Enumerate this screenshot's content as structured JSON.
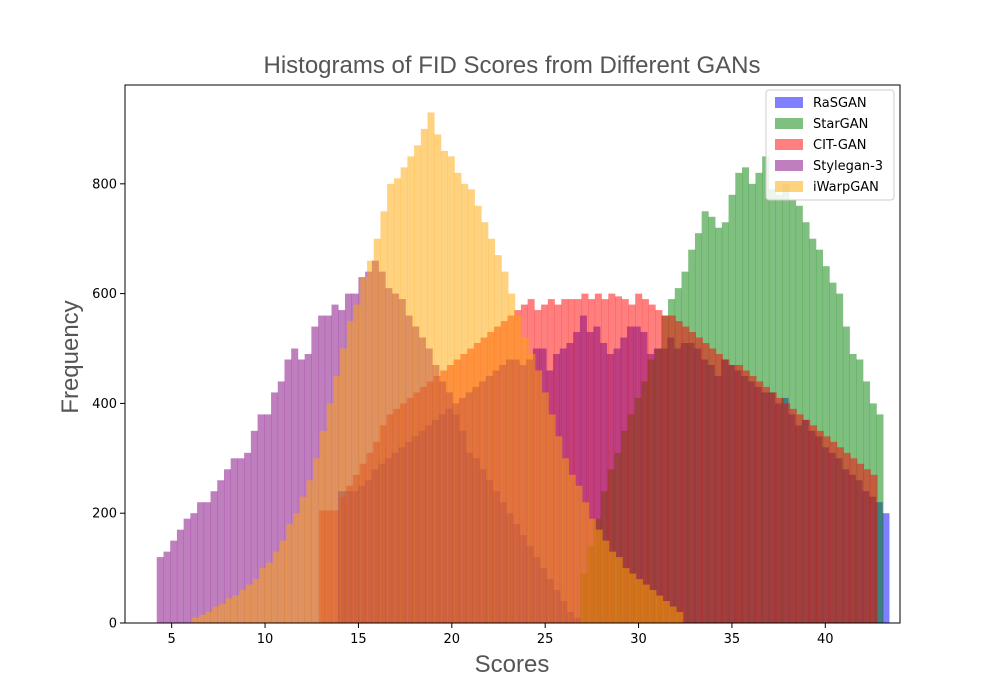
{
  "chart_data": {
    "type": "bar",
    "subtype": "overlaid-histogram",
    "title": "Histograms of FID Scores from Different GANs",
    "xlabel": "Scores",
    "ylabel": "Frequency",
    "xlim": [
      2.5,
      44.0
    ],
    "ylim": [
      0,
      980
    ],
    "xticks": [
      5,
      10,
      15,
      20,
      25,
      30,
      35,
      40
    ],
    "yticks": [
      0,
      200,
      400,
      600,
      800
    ],
    "grid": false,
    "legend_position": "top-right",
    "bar_opacity": 0.5,
    "series": [
      {
        "name": "RaSGAN",
        "color": "#0000ff",
        "bin_start": 13.9,
        "bin_width": 0.36,
        "counts": [
          240,
          240,
          240,
          250,
          260,
          280,
          290,
          300,
          310,
          320,
          330,
          340,
          350,
          360,
          370,
          380,
          390,
          400,
          410,
          420,
          430,
          440,
          450,
          460,
          470,
          480,
          480,
          470,
          480,
          500,
          500,
          460,
          490,
          500,
          510,
          530,
          560,
          530,
          540,
          510,
          490,
          500,
          520,
          540,
          540,
          530,
          490,
          500,
          500,
          520,
          500,
          510,
          510,
          500,
          480,
          470,
          450,
          480,
          470,
          460,
          450,
          440,
          430,
          420,
          420,
          400,
          410,
          380,
          360,
          370,
          350,
          340,
          320,
          310,
          300,
          280,
          270,
          260,
          240,
          230,
          220,
          200
        ]
      },
      {
        "name": "StarGAN",
        "color": "#008000",
        "bin_start": 26.9,
        "bin_width": 0.36,
        "counts": [
          90,
          140,
          190,
          240,
          280,
          310,
          350,
          380,
          410,
          440,
          480,
          500,
          560,
          590,
          610,
          640,
          680,
          710,
          750,
          740,
          720,
          730,
          780,
          820,
          830,
          800,
          820,
          850,
          790,
          780,
          800,
          770,
          760,
          730,
          700,
          680,
          650,
          620,
          600,
          540,
          490,
          480,
          440,
          400,
          380
        ]
      },
      {
        "name": "CIT-GAN",
        "color": "#ff0000",
        "bin_start": 12.9,
        "bin_width": 0.36,
        "counts": [
          205,
          205,
          205,
          230,
          250,
          270,
          290,
          310,
          330,
          360,
          380,
          390,
          400,
          410,
          420,
          430,
          440,
          450,
          460,
          470,
          480,
          490,
          500,
          510,
          520,
          530,
          540,
          550,
          560,
          570,
          580,
          590,
          570,
          580,
          590,
          580,
          590,
          590,
          590,
          600,
          590,
          600,
          590,
          600,
          595,
          590,
          580,
          600,
          590,
          580,
          570,
          560,
          560,
          550,
          540,
          530,
          520,
          510,
          500,
          490,
          480,
          470,
          470,
          460,
          450,
          440,
          430,
          420,
          410,
          400,
          390,
          380,
          370,
          360,
          350,
          340,
          330,
          320,
          310,
          300,
          290,
          280,
          270
        ]
      },
      {
        "name": "Stylegan-3",
        "color": "#800080",
        "bin_start": 4.2,
        "bin_width": 0.36,
        "counts": [
          120,
          130,
          150,
          170,
          190,
          200,
          220,
          220,
          240,
          260,
          280,
          300,
          300,
          310,
          350,
          380,
          380,
          420,
          440,
          480,
          500,
          480,
          490,
          540,
          560,
          560,
          580,
          570,
          600,
          600,
          630,
          640,
          660,
          640,
          610,
          600,
          590,
          560,
          540,
          520,
          500,
          470,
          440,
          420,
          380,
          350,
          310,
          300,
          280,
          260,
          240,
          220,
          200,
          180,
          160,
          140,
          120,
          100,
          80,
          60,
          40,
          20,
          10
        ]
      },
      {
        "name": "iWarpGAN",
        "color": "#ffa500",
        "bin_start": 6.1,
        "bin_width": 0.36,
        "counts": [
          10,
          15,
          20,
          30,
          35,
          45,
          50,
          60,
          70,
          80,
          100,
          110,
          130,
          150,
          180,
          200,
          230,
          260,
          300,
          350,
          400,
          450,
          500,
          550,
          580,
          630,
          660,
          700,
          750,
          800,
          810,
          830,
          850,
          870,
          900,
          930,
          890,
          860,
          850,
          820,
          800,
          790,
          760,
          730,
          700,
          670,
          640,
          600,
          560,
          520,
          490,
          460,
          420,
          380,
          340,
          300,
          270,
          250,
          220,
          190,
          170,
          150,
          130,
          120,
          100,
          90,
          80,
          70,
          60,
          50,
          40,
          30,
          20
        ]
      }
    ]
  }
}
